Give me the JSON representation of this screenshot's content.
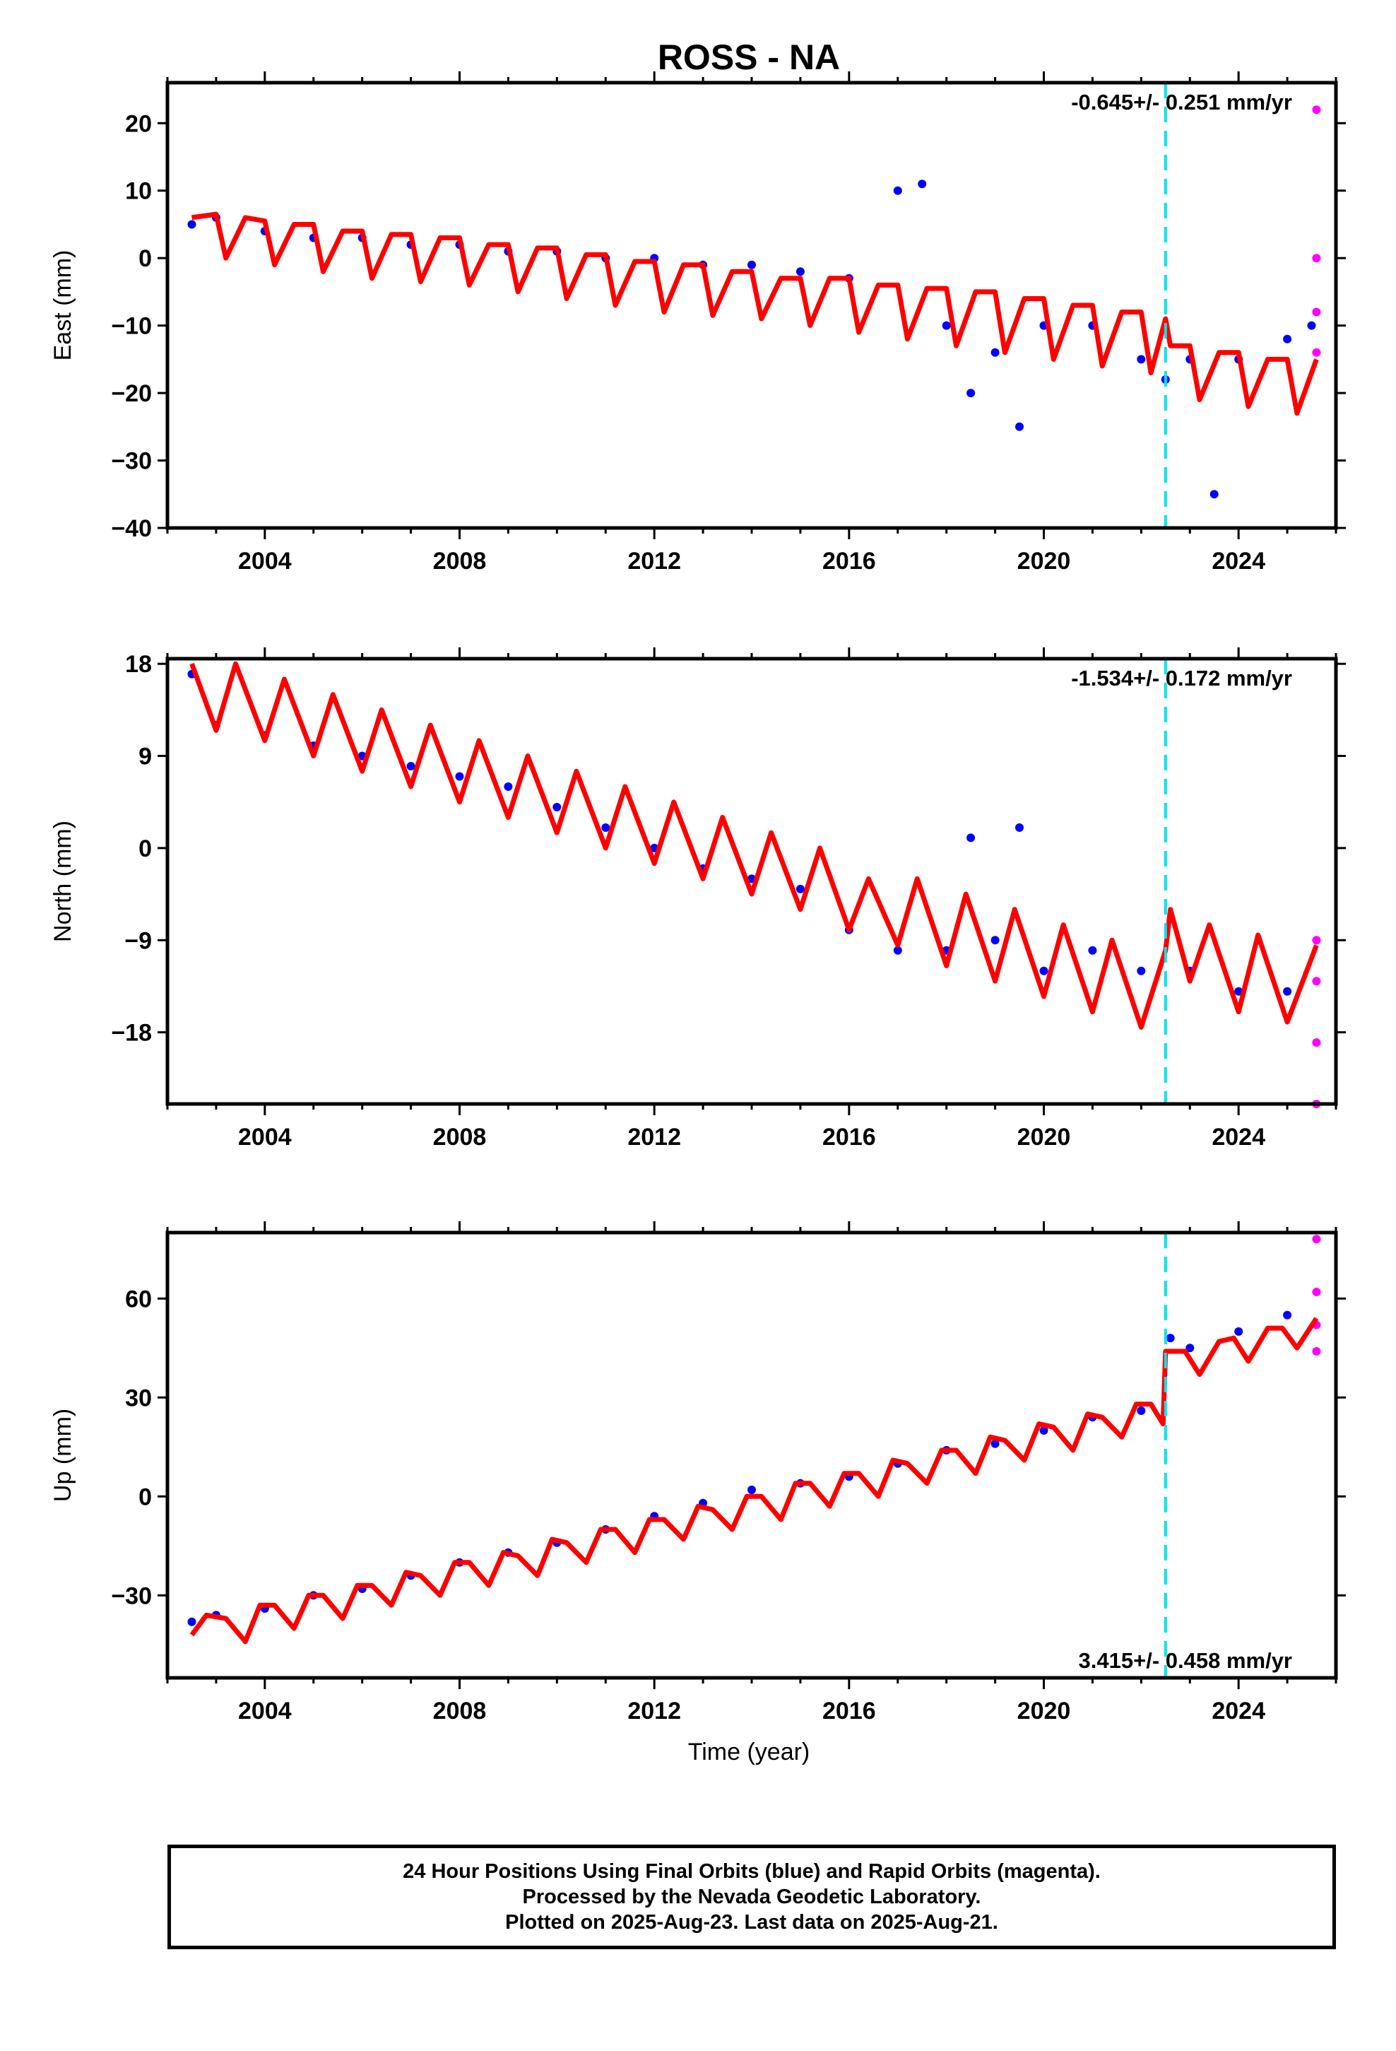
{
  "title": "ROSS - NA",
  "xlabel": "Time (year)",
  "footer": {
    "line1": "24 Hour Positions Using Final Orbits (blue) and Rapid Orbits (magenta).",
    "line2": "Processed by the Nevada Geodetic Laboratory.",
    "line3": "Plotted on 2025-Aug-23. Last data on 2025-Aug-21."
  },
  "colors": {
    "final": "#0000ff",
    "rapid": "#ff00ff",
    "model": "#ff0000",
    "event": "#00e5ee"
  },
  "chart_data": [
    {
      "type": "scatter",
      "ylabel": "East (mm)",
      "rate_text": "-0.645+/- 0.251 mm/yr",
      "xlim": [
        2002.0,
        2026.0
      ],
      "ylim": [
        -40,
        26
      ],
      "xticks": [
        2004,
        2008,
        2012,
        2016,
        2020,
        2024
      ],
      "yticks": [
        20,
        10,
        0,
        -10,
        -20,
        -30,
        -40
      ],
      "event_line_x": 2022.5,
      "model": {
        "name": "model",
        "x": [
          2002.5,
          2003.0,
          2003.2,
          2003.6,
          2004.0,
          2004.2,
          2004.6,
          2005.0,
          2005.2,
          2005.6,
          2006.0,
          2006.2,
          2006.6,
          2007.0,
          2007.2,
          2007.6,
          2008.0,
          2008.2,
          2008.6,
          2009.0,
          2009.2,
          2009.6,
          2010.0,
          2010.2,
          2010.6,
          2011.0,
          2011.2,
          2011.6,
          2012.0,
          2012.2,
          2012.6,
          2013.0,
          2013.2,
          2013.6,
          2014.0,
          2014.2,
          2014.6,
          2015.0,
          2015.2,
          2015.6,
          2016.0,
          2016.2,
          2016.6,
          2017.0,
          2017.2,
          2017.6,
          2018.0,
          2018.2,
          2018.6,
          2019.0,
          2019.2,
          2019.6,
          2020.0,
          2020.2,
          2020.6,
          2021.0,
          2021.2,
          2021.6,
          2022.0,
          2022.2,
          2022.5,
          2022.6,
          2023.0,
          2023.2,
          2023.6,
          2024.0,
          2024.2,
          2024.6,
          2025.0,
          2025.2,
          2025.6
        ],
        "y": [
          6,
          6.5,
          0,
          6,
          5.5,
          -1,
          5,
          5,
          -2,
          4,
          4,
          -3,
          3.5,
          3.5,
          -3.5,
          3,
          3,
          -4,
          2,
          2,
          -5,
          1.5,
          1.5,
          -6,
          0.5,
          0.5,
          -7,
          -0.5,
          -0.5,
          -8,
          -1,
          -1,
          -8.5,
          -2,
          -2,
          -9,
          -3,
          -3,
          -10,
          -3,
          -3,
          -11,
          -4,
          -4,
          -12,
          -4.5,
          -4.5,
          -13,
          -5,
          -5,
          -14,
          -6,
          -6,
          -15,
          -7,
          -7,
          -16,
          -8,
          -8,
          -17,
          -9,
          -13,
          -13,
          -21,
          -14,
          -14,
          -22,
          -15,
          -15,
          -23,
          -15
        ]
      },
      "series": [
        {
          "name": "final",
          "x": [
            2002.5,
            2003.0,
            2004.0,
            2005.0,
            2006.0,
            2007.0,
            2008.0,
            2009.0,
            2010.0,
            2011.0,
            2012.0,
            2013.0,
            2014.0,
            2015.0,
            2016.0,
            2017.0,
            2017.5,
            2018.0,
            2018.5,
            2019.0,
            2019.5,
            2020.0,
            2021.0,
            2022.0,
            2022.5,
            2023.0,
            2023.5,
            2024.0,
            2025.0,
            2025.5
          ],
          "y": [
            5,
            6,
            4,
            3,
            3,
            2,
            2,
            1,
            1,
            0,
            0,
            -1,
            -1,
            -2,
            -3,
            10,
            11,
            -10,
            -20,
            -14,
            -25,
            -10,
            -10,
            -15,
            -18,
            -15,
            -35,
            -15,
            -12,
            -10
          ]
        },
        {
          "name": "rapid",
          "x": [
            2025.6,
            2025.6,
            2025.6,
            2025.6
          ],
          "y": [
            22,
            0,
            -8,
            -14
          ]
        }
      ]
    },
    {
      "type": "scatter",
      "ylabel": "North (mm)",
      "rate_text": "-1.534+/- 0.172 mm/yr",
      "xlim": [
        2002.0,
        2026.0
      ],
      "ylim": [
        -25,
        18.5
      ],
      "xticks": [
        2004,
        2008,
        2012,
        2016,
        2020,
        2024
      ],
      "yticks": [
        18,
        9,
        0,
        -9,
        -18
      ],
      "event_line_x": 2022.5,
      "model": {
        "name": "model",
        "x": [
          2002.5,
          2003.0,
          2003.4,
          2004.0,
          2004.4,
          2005.0,
          2005.4,
          2006.0,
          2006.4,
          2007.0,
          2007.4,
          2008.0,
          2008.4,
          2009.0,
          2009.4,
          2010.0,
          2010.4,
          2011.0,
          2011.4,
          2012.0,
          2012.4,
          2013.0,
          2013.4,
          2014.0,
          2014.4,
          2015.0,
          2015.4,
          2016.0,
          2016.4,
          2017.0,
          2017.4,
          2018.0,
          2018.4,
          2019.0,
          2019.4,
          2020.0,
          2020.4,
          2021.0,
          2021.4,
          2022.0,
          2022.5,
          2022.6,
          2023.0,
          2023.4,
          2024.0,
          2024.4,
          2025.0,
          2025.6
        ],
        "y": [
          18,
          11.5,
          18,
          10.5,
          16.5,
          9,
          15,
          7.5,
          13.5,
          6,
          12,
          4.5,
          10.5,
          3,
          9,
          1.5,
          7.5,
          0,
          6,
          -1.5,
          4.5,
          -3,
          3,
          -4.5,
          1.5,
          -6,
          0,
          -8,
          -3,
          -9.5,
          -3,
          -11.5,
          -4.5,
          -13,
          -6,
          -14.5,
          -7.5,
          -16,
          -9,
          -17.5,
          -10,
          -6,
          -13,
          -7.5,
          -16,
          -8.5,
          -17,
          -9.5
        ]
      },
      "series": [
        {
          "name": "final",
          "x": [
            2002.5,
            2003.0,
            2004.0,
            2005.0,
            2006.0,
            2007.0,
            2008.0,
            2009.0,
            2010.0,
            2011.0,
            2012.0,
            2013.0,
            2014.0,
            2015.0,
            2016.0,
            2017.0,
            2018.0,
            2018.5,
            2019.0,
            2019.5,
            2020.0,
            2021.0,
            2022.0,
            2023.0,
            2024.0,
            2025.0
          ],
          "y": [
            17,
            12,
            11,
            10,
            9,
            8,
            7,
            6,
            4,
            2,
            0,
            -2,
            -3,
            -4,
            -8,
            -10,
            -10,
            1,
            -9,
            2,
            -12,
            -10,
            -12,
            -12,
            -14,
            -14
          ]
        },
        {
          "name": "rapid",
          "x": [
            2025.6,
            2025.6,
            2025.6,
            2025.6
          ],
          "y": [
            -9,
            -13,
            -19,
            -25
          ]
        }
      ]
    },
    {
      "type": "scatter",
      "ylabel": "Up (mm)",
      "rate_text": "3.415+/- 0.458 mm/yr",
      "xlim": [
        2002.0,
        2026.0
      ],
      "ylim": [
        -55,
        80
      ],
      "xticks": [
        2004,
        2008,
        2012,
        2016,
        2020,
        2024
      ],
      "yticks": [
        60,
        30,
        0,
        -30
      ],
      "event_line_x": 2022.5,
      "model": {
        "name": "model",
        "x": [
          2002.5,
          2002.8,
          2003.2,
          2003.6,
          2003.9,
          2004.2,
          2004.6,
          2004.9,
          2005.2,
          2005.6,
          2005.9,
          2006.2,
          2006.6,
          2006.9,
          2007.2,
          2007.6,
          2007.9,
          2008.2,
          2008.6,
          2008.9,
          2009.2,
          2009.6,
          2009.9,
          2010.2,
          2010.6,
          2010.9,
          2011.2,
          2011.6,
          2011.9,
          2012.2,
          2012.6,
          2012.9,
          2013.2,
          2013.6,
          2013.9,
          2014.2,
          2014.6,
          2014.9,
          2015.2,
          2015.6,
          2015.9,
          2016.2,
          2016.6,
          2016.9,
          2017.2,
          2017.6,
          2017.9,
          2018.2,
          2018.6,
          2018.9,
          2019.2,
          2019.6,
          2019.9,
          2020.2,
          2020.6,
          2020.9,
          2021.2,
          2021.6,
          2021.9,
          2022.2,
          2022.45,
          2022.5,
          2022.9,
          2023.2,
          2023.6,
          2023.9,
          2024.2,
          2024.6,
          2024.9,
          2025.2,
          2025.6
        ],
        "y": [
          -42,
          -36,
          -37,
          -44,
          -33,
          -33,
          -40,
          -30,
          -30,
          -37,
          -27,
          -27,
          -33,
          -23,
          -24,
          -30,
          -20,
          -20,
          -27,
          -17,
          -18,
          -24,
          -13,
          -14,
          -20,
          -10,
          -10,
          -17,
          -7,
          -7,
          -13,
          -3,
          -4,
          -10,
          0,
          0,
          -7,
          4,
          4,
          -3,
          7,
          7,
          0,
          11,
          10,
          4,
          14,
          14,
          7,
          18,
          17,
          11,
          22,
          21,
          14,
          25,
          24,
          18,
          28,
          28,
          22,
          44,
          44,
          37,
          47,
          48,
          41,
          51,
          51,
          45,
          54
        ]
      },
      "series": [
        {
          "name": "final",
          "x": [
            2002.5,
            2003.0,
            2004.0,
            2005.0,
            2006.0,
            2007.0,
            2008.0,
            2009.0,
            2010.0,
            2011.0,
            2012.0,
            2013.0,
            2014.0,
            2015.0,
            2016.0,
            2017.0,
            2018.0,
            2019.0,
            2020.0,
            2021.0,
            2022.0,
            2022.6,
            2023.0,
            2024.0,
            2025.0
          ],
          "y": [
            -38,
            -36,
            -34,
            -30,
            -28,
            -24,
            -20,
            -17,
            -14,
            -10,
            -6,
            -2,
            2,
            4,
            6,
            10,
            14,
            16,
            20,
            24,
            26,
            48,
            45,
            50,
            55
          ]
        },
        {
          "name": "rapid",
          "x": [
            2025.6,
            2025.6,
            2025.6,
            2025.6
          ],
          "y": [
            78,
            62,
            52,
            44
          ]
        }
      ]
    }
  ]
}
